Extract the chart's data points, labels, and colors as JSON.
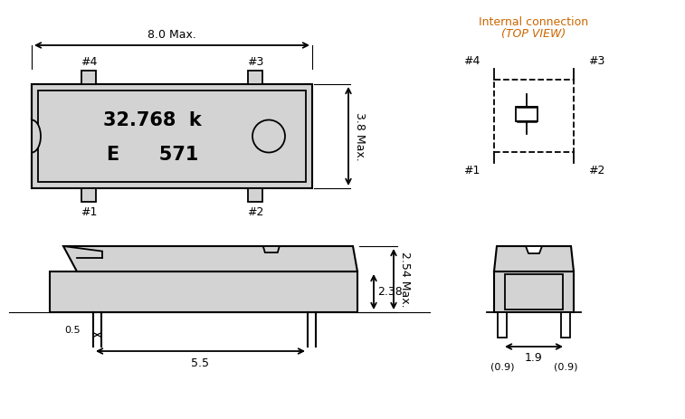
{
  "bg_color": "#ffffff",
  "line_color": "#000000",
  "gray_fill": "#d3d3d3",
  "orange_text": "#cc6600",
  "title_text1": "Internal connection",
  "title_text2": "(TOP VIEW)",
  "main_label": "32.768  k",
  "main_label2": "E      571",
  "dim_8max": "8.0 Max.",
  "dim_38max": "3.8 Max.",
  "dim_238": "2.38",
  "dim_254max": "2.54 Max.",
  "dim_05": "0.5",
  "dim_55": "5.5",
  "dim_19": "1.9",
  "dim_09l": "(0.9)",
  "dim_09r": "(0.9)",
  "pin1": "#1",
  "pin2": "#2",
  "pin3": "#3",
  "pin4": "#4"
}
